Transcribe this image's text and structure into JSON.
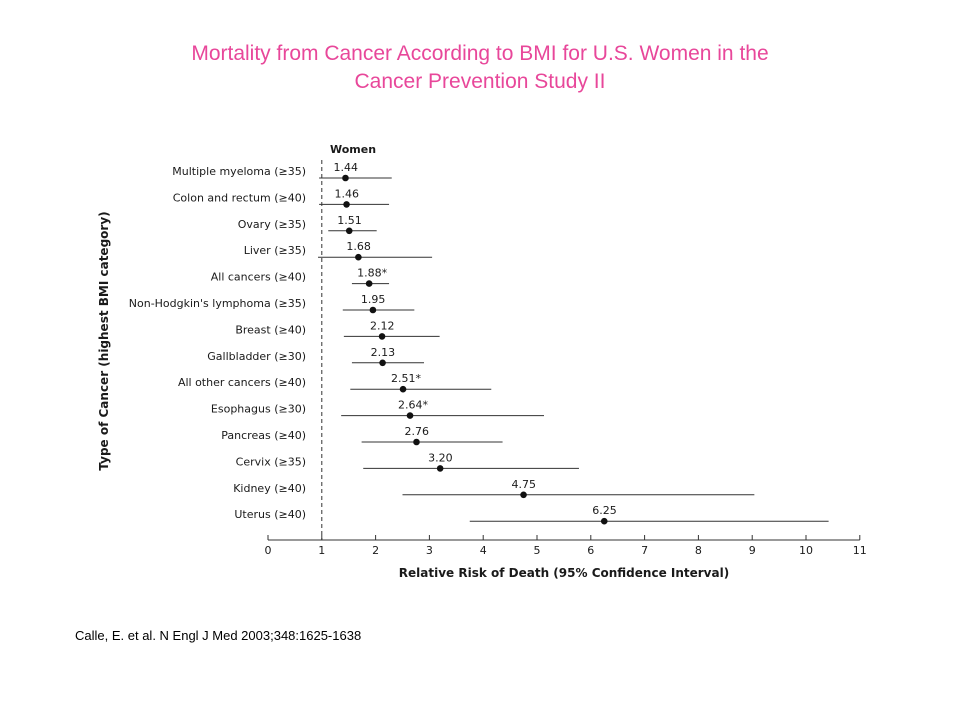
{
  "slide": {
    "title_line1": "Mortality from Cancer According to BMI for U.S. Women in the",
    "title_line2": "Cancer Prevention Study II",
    "citation": "Calle, E. et al. N Engl J Med 2003;348:1625-1638"
  },
  "chart_data": {
    "type": "forest",
    "panel_title": "Women",
    "xlabel": "Relative Risk of Death (95% Confidence Interval)",
    "ylabel": "Type of Cancer (highest BMI category)",
    "xlim": [
      0,
      11
    ],
    "xticks": [
      0,
      1,
      2,
      3,
      4,
      5,
      6,
      7,
      8,
      9,
      10,
      11
    ],
    "reference_line": 1,
    "grid": false,
    "rows": [
      {
        "label": "Multiple myeloma (≥35)",
        "value": 1.44,
        "ci": [
          0.95,
          2.3
        ],
        "value_label": "1.44"
      },
      {
        "label": "Colon and rectum (≥40)",
        "value": 1.46,
        "ci": [
          0.95,
          2.25
        ],
        "value_label": "1.46"
      },
      {
        "label": "Ovary (≥35)",
        "value": 1.51,
        "ci": [
          1.12,
          2.02
        ],
        "value_label": "1.51"
      },
      {
        "label": "Liver (≥35)",
        "value": 1.68,
        "ci": [
          0.93,
          3.05
        ],
        "value_label": "1.68"
      },
      {
        "label": "All cancers (≥40)",
        "value": 1.88,
        "ci": [
          1.56,
          2.25
        ],
        "value_label": "1.88*"
      },
      {
        "label": "Non-Hodgkin's lymphoma (≥35)",
        "value": 1.95,
        "ci": [
          1.39,
          2.72
        ],
        "value_label": "1.95"
      },
      {
        "label": "Breast (≥40)",
        "value": 2.12,
        "ci": [
          1.41,
          3.19
        ],
        "value_label": "2.12"
      },
      {
        "label": "Gallbladder (≥30)",
        "value": 2.13,
        "ci": [
          1.56,
          2.9
        ],
        "value_label": "2.13"
      },
      {
        "label": "All other cancers (≥40)",
        "value": 2.51,
        "ci": [
          1.53,
          4.15
        ],
        "value_label": "2.51*"
      },
      {
        "label": "Esophagus (≥30)",
        "value": 2.64,
        "ci": [
          1.36,
          5.13
        ],
        "value_label": "2.64*"
      },
      {
        "label": "Pancreas (≥40)",
        "value": 2.76,
        "ci": [
          1.74,
          4.36
        ],
        "value_label": "2.76"
      },
      {
        "label": "Cervix (≥35)",
        "value": 3.2,
        "ci": [
          1.77,
          5.78
        ],
        "value_label": "3.20"
      },
      {
        "label": "Kidney (≥40)",
        "value": 4.75,
        "ci": [
          2.5,
          9.04
        ],
        "value_label": "4.75"
      },
      {
        "label": "Uterus (≥40)",
        "value": 6.25,
        "ci": [
          3.75,
          10.42
        ],
        "value_label": "6.25"
      }
    ]
  }
}
